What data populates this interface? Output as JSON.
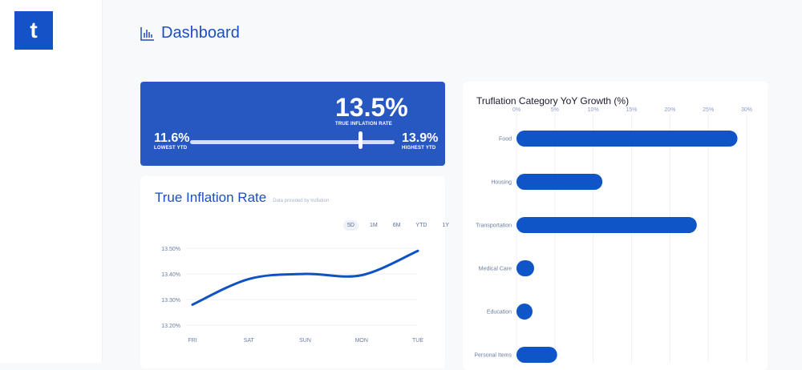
{
  "logo": {
    "letter": "t"
  },
  "header": {
    "title": "Dashboard",
    "icon": "bar-chart-icon"
  },
  "rate_card": {
    "current": "13.5%",
    "current_label": "TRUE INFLATION RATE",
    "low": "11.6%",
    "low_label": "LOWEST YTD",
    "high": "13.9%",
    "high_label": "HIGHEST YTD",
    "position_fraction": 0.83,
    "background": "#2757c0"
  },
  "line_card": {
    "title": "True Inflation Rate",
    "subtitle": "Data provided by truflation",
    "ranges": [
      "5D",
      "1M",
      "6M",
      "YTD",
      "1Y"
    ],
    "selected_range": "5D"
  },
  "chart_data": [
    {
      "type": "line",
      "categories": [
        "FRI",
        "SAT",
        "SUN",
        "MON",
        "TUE"
      ],
      "values": [
        13.28,
        13.38,
        13.4,
        13.395,
        13.49
      ],
      "yticks": [
        "13.20%",
        "13.30%",
        "13.40%",
        "13.50%"
      ],
      "ylim": [
        13.2,
        13.5
      ],
      "grid": true,
      "color": "#0f52c4"
    },
    {
      "type": "bar",
      "orientation": "horizontal",
      "title": "Truflation Category YoY Growth (%)",
      "categories": [
        "Food",
        "Housing",
        "Transportation",
        "Medical Care",
        "Education",
        "Personal Items"
      ],
      "values": [
        28.8,
        11.2,
        23.5,
        2.3,
        1.5,
        5.3
      ],
      "xticks": [
        "0%",
        "5%",
        "10%",
        "15%",
        "20%",
        "25%",
        "30%"
      ],
      "xlim": [
        0,
        30
      ],
      "grid": true,
      "color": "#0f55c7"
    }
  ]
}
